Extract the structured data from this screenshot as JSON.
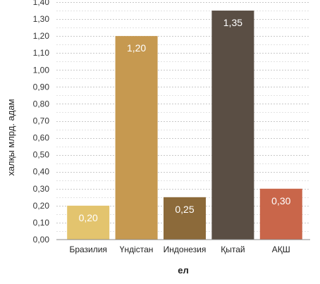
{
  "chart_data": {
    "type": "bar",
    "categories": [
      "Бразилия",
      "Үндістан",
      "Индонезия",
      "Қытай",
      "АҚШ"
    ],
    "values": [
      0.2,
      1.2,
      0.25,
      1.35,
      0.3
    ],
    "value_labels": [
      "0,20",
      "1,20",
      "0,25",
      "1,35",
      "0,30"
    ],
    "colors": [
      "#e3c46e",
      "#c69950",
      "#8c6a3a",
      "#5a4e44",
      "#c9664a"
    ],
    "xlabel": "ел",
    "ylabel": "халқы млрд. адам",
    "ylim": [
      0,
      1.4
    ],
    "y_ticks": [
      "0,00",
      "0,10",
      "0,20",
      "0,30",
      "0,40",
      "0,50",
      "0,60",
      "0,70",
      "0,80",
      "0,90",
      "1,00",
      "1,10",
      "1,20",
      "1,30",
      "1,40"
    ],
    "grid": true,
    "legend": "none"
  }
}
